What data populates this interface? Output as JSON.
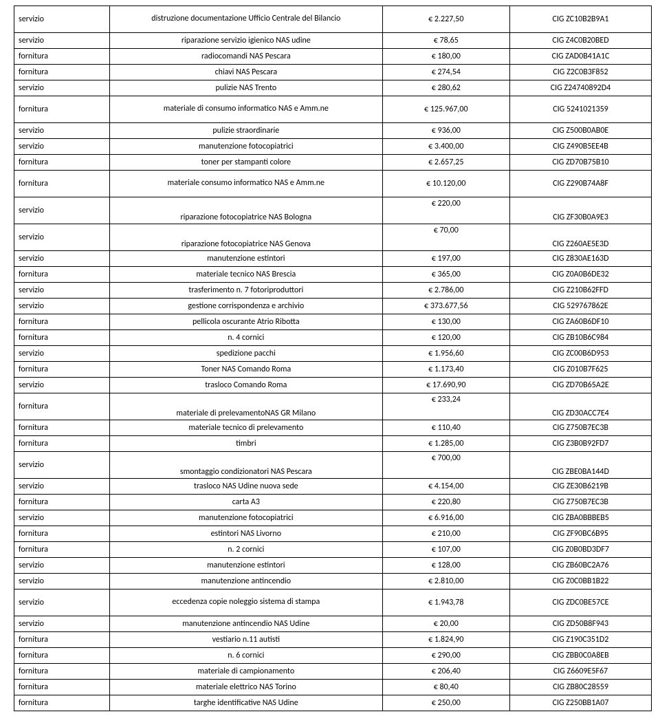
{
  "columns": {
    "type_width": 135,
    "desc_width": 385,
    "amt_width": 180,
    "cig_width": 200
  },
  "rows": [
    {
      "type": "servizio",
      "desc": "distruzione documentazione Ufficio Centrale del Bilancio",
      "desc_multi": true,
      "amount": "€ 2.227,50",
      "cig": "CIG ZC10B2B9A1"
    },
    {
      "type": "servizio",
      "desc": "riparazione servizio igienico NAS udine",
      "amount": "€ 78,65",
      "cig": "CIG Z4C0B20BED"
    },
    {
      "type": "fornitura",
      "desc": "radiocomandi NAS Pescara",
      "amount": "€ 180,00",
      "cig": "CIG ZAD0B41A1C"
    },
    {
      "type": "fornitura",
      "desc": "chiavi NAS Pescara",
      "amount": "€ 274,54",
      "cig": "CIG Z2C0B3F852"
    },
    {
      "type": "servizio",
      "desc": "pulizie NAS Trento",
      "amount": "€ 280,62",
      "cig": "CIG Z24740892D4"
    },
    {
      "type": "fornitura",
      "desc": "materiale di consumo informatico NAS e Amm.ne",
      "desc_multi": true,
      "amount": "€ 125.967,00",
      "cig": "CIG 5241021359"
    },
    {
      "type": "servizio",
      "desc": "pulizie straordinarie",
      "amount": "€ 936,00",
      "cig": "CIG Z500B0AB0E"
    },
    {
      "type": "servizio",
      "desc": "manutenzione fotocopiatrici",
      "amount": "€ 3.400,00",
      "cig": "CIG Z490B5EE4B"
    },
    {
      "type": "fornitura",
      "desc": "toner per stampanti colore",
      "amount": "€ 2.657,25",
      "cig": "CIG ZD70B75B10"
    },
    {
      "type": "fornitura",
      "desc": "materiale consumo informatico NAS e Amm.ne",
      "desc_multi": true,
      "amount": "€ 10.120,00",
      "cig": "CIG Z290B74A8F"
    },
    {
      "type": "servizio",
      "desc": "riparazione fotocopiatrice NAS Bologna",
      "tall": true,
      "amount": "€ 220,00",
      "cig": "CIG ZF30B0A9E3"
    },
    {
      "type": "servizio",
      "desc": "riparazione fotocopiatrice NAS Genova",
      "tall": true,
      "amount": "€ 70,00",
      "cig": "CIG Z260AE5E3D"
    },
    {
      "type": "servizio",
      "desc": "manutenzione estintori",
      "amount": "€ 197,00",
      "cig": "CIG Z830AE163D"
    },
    {
      "type": "fornitura",
      "desc": "materiale tecnico NAS Brescia",
      "amount": "€ 365,00",
      "cig": "CIG Z0A0B6DE32"
    },
    {
      "type": "servizio",
      "desc": "trasferimento n. 7 fotoriproduttori",
      "amount": "€ 2.786,00",
      "cig": "CIG Z210B62FFD"
    },
    {
      "type": "servizio",
      "desc": "gestione corrispondenza  e archivio",
      "amount": "€ 373.677,56",
      "cig": "CIG 529767862E"
    },
    {
      "type": "fornitura",
      "desc": "pellicola oscurante Atrio Ribotta",
      "amount": "€ 130,00",
      "cig": "CIG ZA60B6DF10"
    },
    {
      "type": "fornitura",
      "desc": "n. 4 cornici",
      "amount": "€ 120,00",
      "cig": "CIG ZB10B6C984"
    },
    {
      "type": "servizio",
      "desc": "spedizione pacchi",
      "amount": "€ 1.956,60",
      "cig": "CIG ZC00B6D953"
    },
    {
      "type": "fornitura",
      "desc": "Toner NAS Comando Roma",
      "amount": "€ 1.173,40",
      "cig": "CIG Z010B7F625"
    },
    {
      "type": "servizio",
      "desc": "trasloco Comando Roma",
      "amount": "€ 17.690,90",
      "cig": "CIG ZD70B65A2E"
    },
    {
      "type": "fornitura",
      "desc": "materiale di prelevamentoNAS GR Milano",
      "tall": true,
      "amount": "€ 233,24",
      "cig": "CIG ZD30ACC7E4"
    },
    {
      "type": "fornitura",
      "desc": "materiale tecnico di prelevamento",
      "amount": "€ 110,40",
      "cig": "CIG Z750B7EC3B"
    },
    {
      "type": "fornitura",
      "desc": "timbri",
      "amount": "€ 1.285,00",
      "cig": "CIG Z3B0B92FD7"
    },
    {
      "type": "servizio",
      "desc": "smontaggio condizionatori NAS Pescara",
      "tall": true,
      "amount": "€ 700,00",
      "cig": "CIG ZBE0BA144D"
    },
    {
      "type": "servizio",
      "desc": "trasloco NAS Udine nuova sede",
      "amount": "€ 4.154,00",
      "cig": "CIG ZE30B6219B"
    },
    {
      "type": "fornitura",
      "desc": "carta A3",
      "amount": "€ 220,80",
      "cig": "CIG Z750B7EC3B"
    },
    {
      "type": "servizio",
      "desc": "manutenzione fotocopiatrici",
      "amount": "€ 6.916,00",
      "cig": "CIG ZBA0BBBEB5"
    },
    {
      "type": "fornitura",
      "desc": "estintori NAS Livorno",
      "amount": "€ 210,00",
      "cig": "CIG ZF90BC6B95"
    },
    {
      "type": "fornitura",
      "desc": "n. 2 cornici",
      "amount": "€ 107,00",
      "cig": "CIG Z0B0BD3DF7"
    },
    {
      "type": "servizio",
      "desc": "manutenzione estintori",
      "amount": "€ 128,00",
      "cig": "CIG ZB60BC2A76"
    },
    {
      "type": "servizio",
      "desc": "manutenzione antincendio",
      "amount": "€ 2.810,00",
      "cig": "CIG Z0C0BB1B22"
    },
    {
      "type": "servizio",
      "desc": "eccedenza copie noleggio sistema di stampa",
      "desc_multi": true,
      "amount": "€ 1.943,78",
      "cig": "CIG ZDC0BE57CE"
    },
    {
      "type": "servizio",
      "desc": "manutenzione antincendio NAS Udine",
      "amount": "€ 20,00",
      "cig": "CIG ZD50B8F943"
    },
    {
      "type": "fornitura",
      "desc": "vestiario n.11 autisti",
      "amount": "€ 1.824,90",
      "cig": "CIG Z190C351D2"
    },
    {
      "type": "fornitura",
      "desc": "n. 6 cornici",
      "amount": "€ 290,00",
      "cig": "CIG ZBB0C0A8EB"
    },
    {
      "type": "fornitura",
      "desc": "materiale di campionamento",
      "amount": "€ 206,40",
      "cig": "CIG Z6609E5F67"
    },
    {
      "type": "fornitura",
      "desc": "materiale elettrico NAS Torino",
      "amount": "€ 80,40",
      "cig": "CIG ZB80C28559"
    },
    {
      "type": "fornitura",
      "desc": "targhe identificative NAS Udine",
      "amount": "€ 250,00",
      "cig": "CIG Z250BB1A07"
    }
  ]
}
